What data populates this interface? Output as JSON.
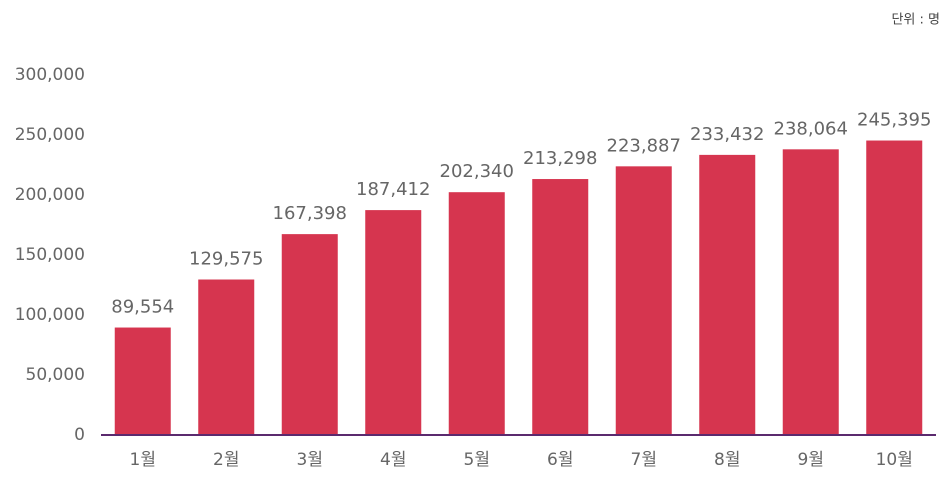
{
  "chart_data": {
    "type": "bar",
    "unit_label": "단위 : 명",
    "categories": [
      "1월",
      "2월",
      "3월",
      "4월",
      "5월",
      "6월",
      "7월",
      "8월",
      "9월",
      "10월"
    ],
    "values": [
      89554,
      129575,
      167398,
      187412,
      202340,
      213298,
      223887,
      233432,
      238064,
      245395
    ],
    "value_labels": [
      "89,554",
      "129,575",
      "167,398",
      "187,412",
      "202,340",
      "213,298",
      "223,887",
      "233,432",
      "238,064",
      "245,395"
    ],
    "color": "#d6354f",
    "ylim": [
      0,
      300000
    ],
    "yticks": [
      0,
      {
        "value": 50000,
        "label": "50,000"
      },
      {
        "value": 100000,
        "label": "100,000"
      },
      {
        "value": 150000,
        "label": "150,000"
      },
      {
        "value": 200000,
        "label": "200,000"
      },
      {
        "value": 250000,
        "label": "250,000"
      },
      {
        "value": 300000,
        "label": "300,000"
      }
    ],
    "grid": false
  }
}
